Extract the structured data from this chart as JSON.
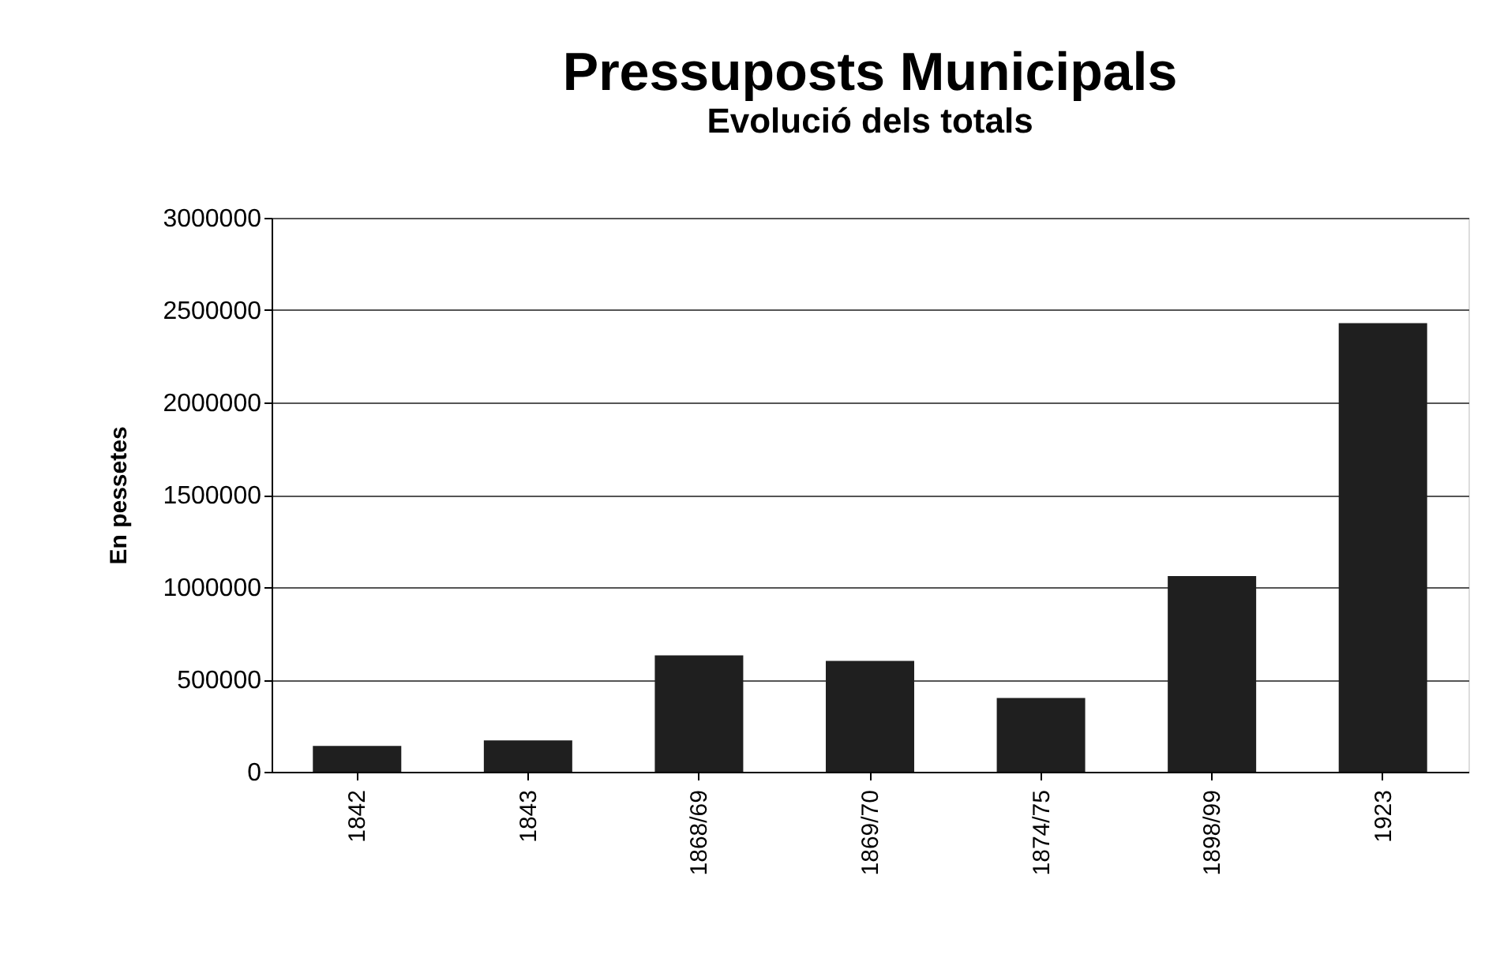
{
  "chart_data": {
    "type": "bar",
    "title": "Pressuposts  Municipals",
    "subtitle": "Evolució dels totals",
    "ylabel": "En pessetes",
    "categories": [
      "1842",
      "1843",
      "1868/69",
      "1869/70",
      "1874/75",
      "1898/99",
      "1923"
    ],
    "values": [
      140000,
      170000,
      630000,
      600000,
      400000,
      1060000,
      2430000
    ],
    "color": "#1f1f1f",
    "ylim": [
      0,
      3000000
    ],
    "yticks": [
      0,
      500000,
      1000000,
      1500000,
      2000000,
      2500000,
      3000000
    ],
    "grid": "y"
  }
}
